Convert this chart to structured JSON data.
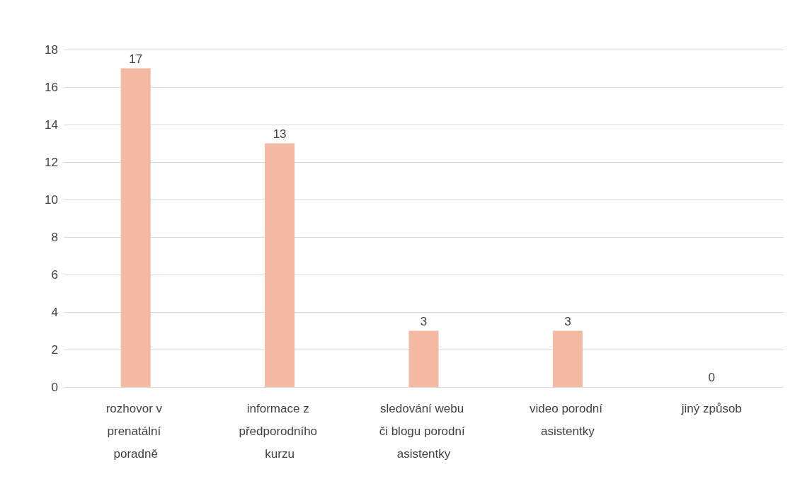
{
  "chart_data": {
    "type": "bar",
    "categories": [
      "rozhovor v prenatální poradně",
      "informace z předporodního kurzu",
      "sledování webu či blogu porodní asistentky",
      "video porodní asistentky",
      "jiný způsob"
    ],
    "values": [
      17,
      13,
      3,
      3,
      0
    ],
    "color": "#f4b9a3",
    "ylim": [
      0,
      18
    ],
    "yticks": [
      0,
      2,
      4,
      6,
      8,
      10,
      12,
      14,
      16,
      18
    ],
    "grid": "y",
    "data_labels": true
  }
}
